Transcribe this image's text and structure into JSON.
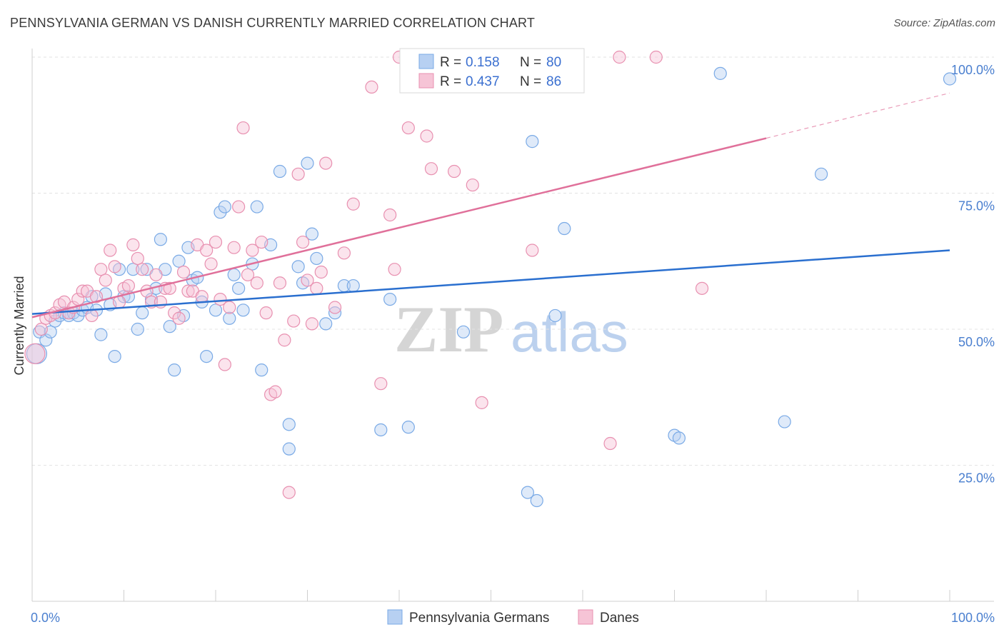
{
  "title": "PENNSYLVANIA GERMAN VS DANISH CURRENTLY MARRIED CORRELATION CHART",
  "source": "Source: ZipAtlas.com",
  "watermark": {
    "zip": "ZIP",
    "atlas": "atlas"
  },
  "chart_data": {
    "type": "scatter",
    "xlabel": "",
    "ylabel": "Currently Married",
    "xlim": [
      0,
      100
    ],
    "ylim": [
      0,
      100
    ],
    "x_tick_labels": [
      "0.0%",
      "100.0%"
    ],
    "y_tick_labels": [
      "25.0%",
      "50.0%",
      "75.0%",
      "100.0%"
    ],
    "y_tick_values": [
      25,
      50,
      75,
      100
    ],
    "legend_position": "top-center",
    "stats": [
      {
        "r_label": "R =",
        "r_value": "0.158",
        "n_label": "N =",
        "n_value": "80"
      },
      {
        "r_label": "R =",
        "r_value": "0.437",
        "n_label": "N =",
        "n_value": "86"
      }
    ],
    "series": [
      {
        "name": "Pennsylvania Germans",
        "color": "#7aaae6",
        "fill": "#b7d0f2",
        "line_color": "#2a6fcf",
        "trend": {
          "x0": 0,
          "y0": 52.8,
          "x1": 100,
          "y1": 64.5
        },
        "points": [
          [
            0.5,
            45.5
          ],
          [
            0.8,
            49.5
          ],
          [
            1.5,
            48
          ],
          [
            2,
            49.5
          ],
          [
            2.5,
            51.5
          ],
          [
            3,
            52.5
          ],
          [
            3.5,
            53
          ],
          [
            4,
            52.5
          ],
          [
            4.5,
            53
          ],
          [
            5,
            52.5
          ],
          [
            5.5,
            53.5
          ],
          [
            6,
            54
          ],
          [
            6.5,
            56
          ],
          [
            7,
            53.5
          ],
          [
            7.5,
            49
          ],
          [
            8,
            56.5
          ],
          [
            8.5,
            54.5
          ],
          [
            9,
            45
          ],
          [
            9.5,
            61
          ],
          [
            10,
            56
          ],
          [
            10.5,
            56
          ],
          [
            11,
            61
          ],
          [
            11.5,
            50
          ],
          [
            12,
            53
          ],
          [
            12.5,
            61
          ],
          [
            13,
            55.5
          ],
          [
            13.5,
            57.5
          ],
          [
            14,
            66.5
          ],
          [
            14.5,
            61
          ],
          [
            15,
            50.5
          ],
          [
            15.5,
            42.5
          ],
          [
            16,
            62.5
          ],
          [
            16.5,
            52.5
          ],
          [
            17,
            65
          ],
          [
            17.5,
            59
          ],
          [
            18,
            59.5
          ],
          [
            18.5,
            55
          ],
          [
            19,
            45
          ],
          [
            20,
            53.5
          ],
          [
            20.5,
            71.5
          ],
          [
            21,
            72.5
          ],
          [
            21.5,
            52
          ],
          [
            22,
            60
          ],
          [
            22.5,
            57.5
          ],
          [
            23,
            53.5
          ],
          [
            24,
            62
          ],
          [
            24.5,
            72.5
          ],
          [
            25,
            42.5
          ],
          [
            26,
            65.5
          ],
          [
            27,
            79
          ],
          [
            28,
            32.5
          ],
          [
            28,
            28
          ],
          [
            29,
            61.5
          ],
          [
            29.5,
            58.5
          ],
          [
            30,
            80.5
          ],
          [
            30.5,
            67.5
          ],
          [
            31,
            63
          ],
          [
            32,
            51
          ],
          [
            33,
            53
          ],
          [
            34,
            58
          ],
          [
            35,
            58
          ],
          [
            38,
            31.5
          ],
          [
            39,
            55.5
          ],
          [
            41,
            32
          ],
          [
            47,
            49.5
          ],
          [
            54,
            20
          ],
          [
            54.5,
            84.5
          ],
          [
            55,
            18.5
          ],
          [
            57,
            52.5
          ],
          [
            58,
            68.5
          ],
          [
            70,
            30.5
          ],
          [
            70.5,
            30
          ],
          [
            75,
            97
          ],
          [
            82,
            33
          ],
          [
            86,
            78.5
          ],
          [
            100,
            96
          ]
        ]
      },
      {
        "name": "Danes",
        "color": "#e890b0",
        "fill": "#f6c4d6",
        "line_color": "#e0709a",
        "trend": {
          "x0": 0,
          "y0": 52.2,
          "x1": 80,
          "y1": 85.1
        },
        "trend_dashed": {
          "x0": 80,
          "y0": 85.1,
          "x1": 100,
          "y1": 93.4
        },
        "points": [
          [
            0.3,
            45.5
          ],
          [
            1,
            50
          ],
          [
            1.5,
            52
          ],
          [
            2,
            52.5
          ],
          [
            2.5,
            53
          ],
          [
            3,
            54.5
          ],
          [
            3.5,
            55
          ],
          [
            4,
            53
          ],
          [
            4.5,
            54
          ],
          [
            5,
            55.5
          ],
          [
            5.5,
            57
          ],
          [
            6,
            57
          ],
          [
            6.5,
            52.5
          ],
          [
            7,
            56
          ],
          [
            7.5,
            61
          ],
          [
            8,
            59
          ],
          [
            8.5,
            64.5
          ],
          [
            9,
            61.5
          ],
          [
            9.5,
            55
          ],
          [
            10,
            57.5
          ],
          [
            10.5,
            58
          ],
          [
            11,
            65.5
          ],
          [
            11.5,
            63
          ],
          [
            12,
            61
          ],
          [
            12.5,
            57
          ],
          [
            13,
            55
          ],
          [
            13.5,
            60
          ],
          [
            14,
            55
          ],
          [
            14.5,
            57.5
          ],
          [
            15,
            57.5
          ],
          [
            15.5,
            53
          ],
          [
            16,
            52
          ],
          [
            16.5,
            60.5
          ],
          [
            17,
            57
          ],
          [
            17.5,
            57
          ],
          [
            18,
            65.5
          ],
          [
            18.5,
            56
          ],
          [
            19,
            64.5
          ],
          [
            19.5,
            62
          ],
          [
            20,
            66
          ],
          [
            20.5,
            55.5
          ],
          [
            21,
            43.5
          ],
          [
            21.5,
            54
          ],
          [
            22,
            65
          ],
          [
            22.5,
            72.5
          ],
          [
            23,
            87
          ],
          [
            23.5,
            60
          ],
          [
            24,
            64.5
          ],
          [
            24.5,
            58.5
          ],
          [
            25,
            66
          ],
          [
            25.5,
            53
          ],
          [
            26,
            38
          ],
          [
            26.5,
            38.5
          ],
          [
            27,
            58.5
          ],
          [
            27.5,
            48
          ],
          [
            28,
            20
          ],
          [
            28.5,
            51.5
          ],
          [
            29,
            78.5
          ],
          [
            29.5,
            66
          ],
          [
            30,
            59
          ],
          [
            30.5,
            51
          ],
          [
            31,
            57.5
          ],
          [
            31.5,
            60.5
          ],
          [
            32,
            80.5
          ],
          [
            33,
            54
          ],
          [
            34,
            64
          ],
          [
            35,
            73
          ],
          [
            37,
            94.5
          ],
          [
            38,
            40
          ],
          [
            39,
            71
          ],
          [
            39.5,
            61
          ],
          [
            40,
            100
          ],
          [
            41,
            87
          ],
          [
            43,
            85.5
          ],
          [
            43.5,
            79.5
          ],
          [
            46,
            79
          ],
          [
            48,
            76.5
          ],
          [
            49,
            36.5
          ],
          [
            52,
            100
          ],
          [
            54.5,
            64.5
          ],
          [
            63,
            29
          ],
          [
            64,
            100
          ],
          [
            68,
            100
          ],
          [
            73,
            57.5
          ]
        ]
      }
    ]
  }
}
